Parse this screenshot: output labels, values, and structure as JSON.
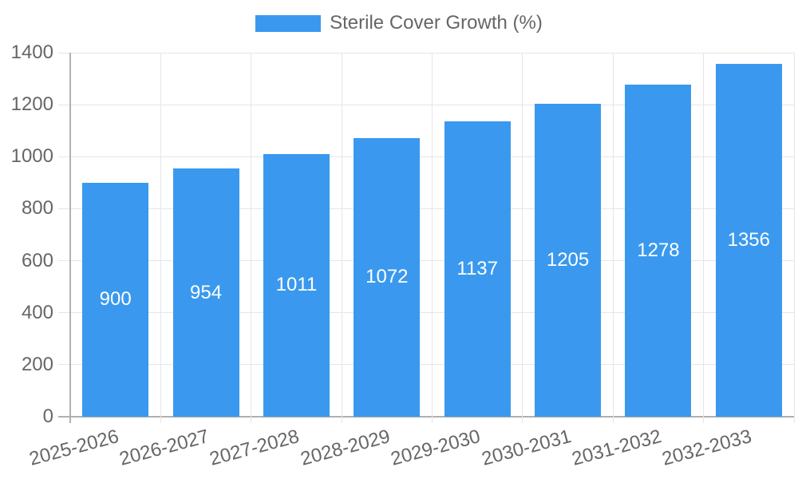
{
  "legend": {
    "label": "Sterile Cover Growth (%)"
  },
  "chart_data": {
    "type": "bar",
    "title": "",
    "xlabel": "",
    "ylabel": "",
    "categories": [
      "2025-2026",
      "2026-2027",
      "2027-2028",
      "2028-2029",
      "2029-2030",
      "2030-2031",
      "2031-2032",
      "2032-2033"
    ],
    "series": [
      {
        "name": "Sterile Cover Growth (%)",
        "values": [
          900,
          954,
          1011,
          1072,
          1137,
          1205,
          1278,
          1356
        ]
      }
    ],
    "ylim": [
      0,
      1400
    ],
    "ytick_step": 200,
    "ytick_labels": [
      "0",
      "200",
      "400",
      "600",
      "800",
      "1000",
      "1200",
      "1400"
    ],
    "grid": true,
    "legend_position": "top",
    "value_labels": "inside-center",
    "x_label_rotation_deg": -15,
    "colors": {
      "bar": "#3a99ee",
      "grid": "#e6e6e6",
      "axis": "#b0b0b0",
      "text": "#666666",
      "value_label": "#ffffff",
      "background": "#ffffff"
    }
  }
}
